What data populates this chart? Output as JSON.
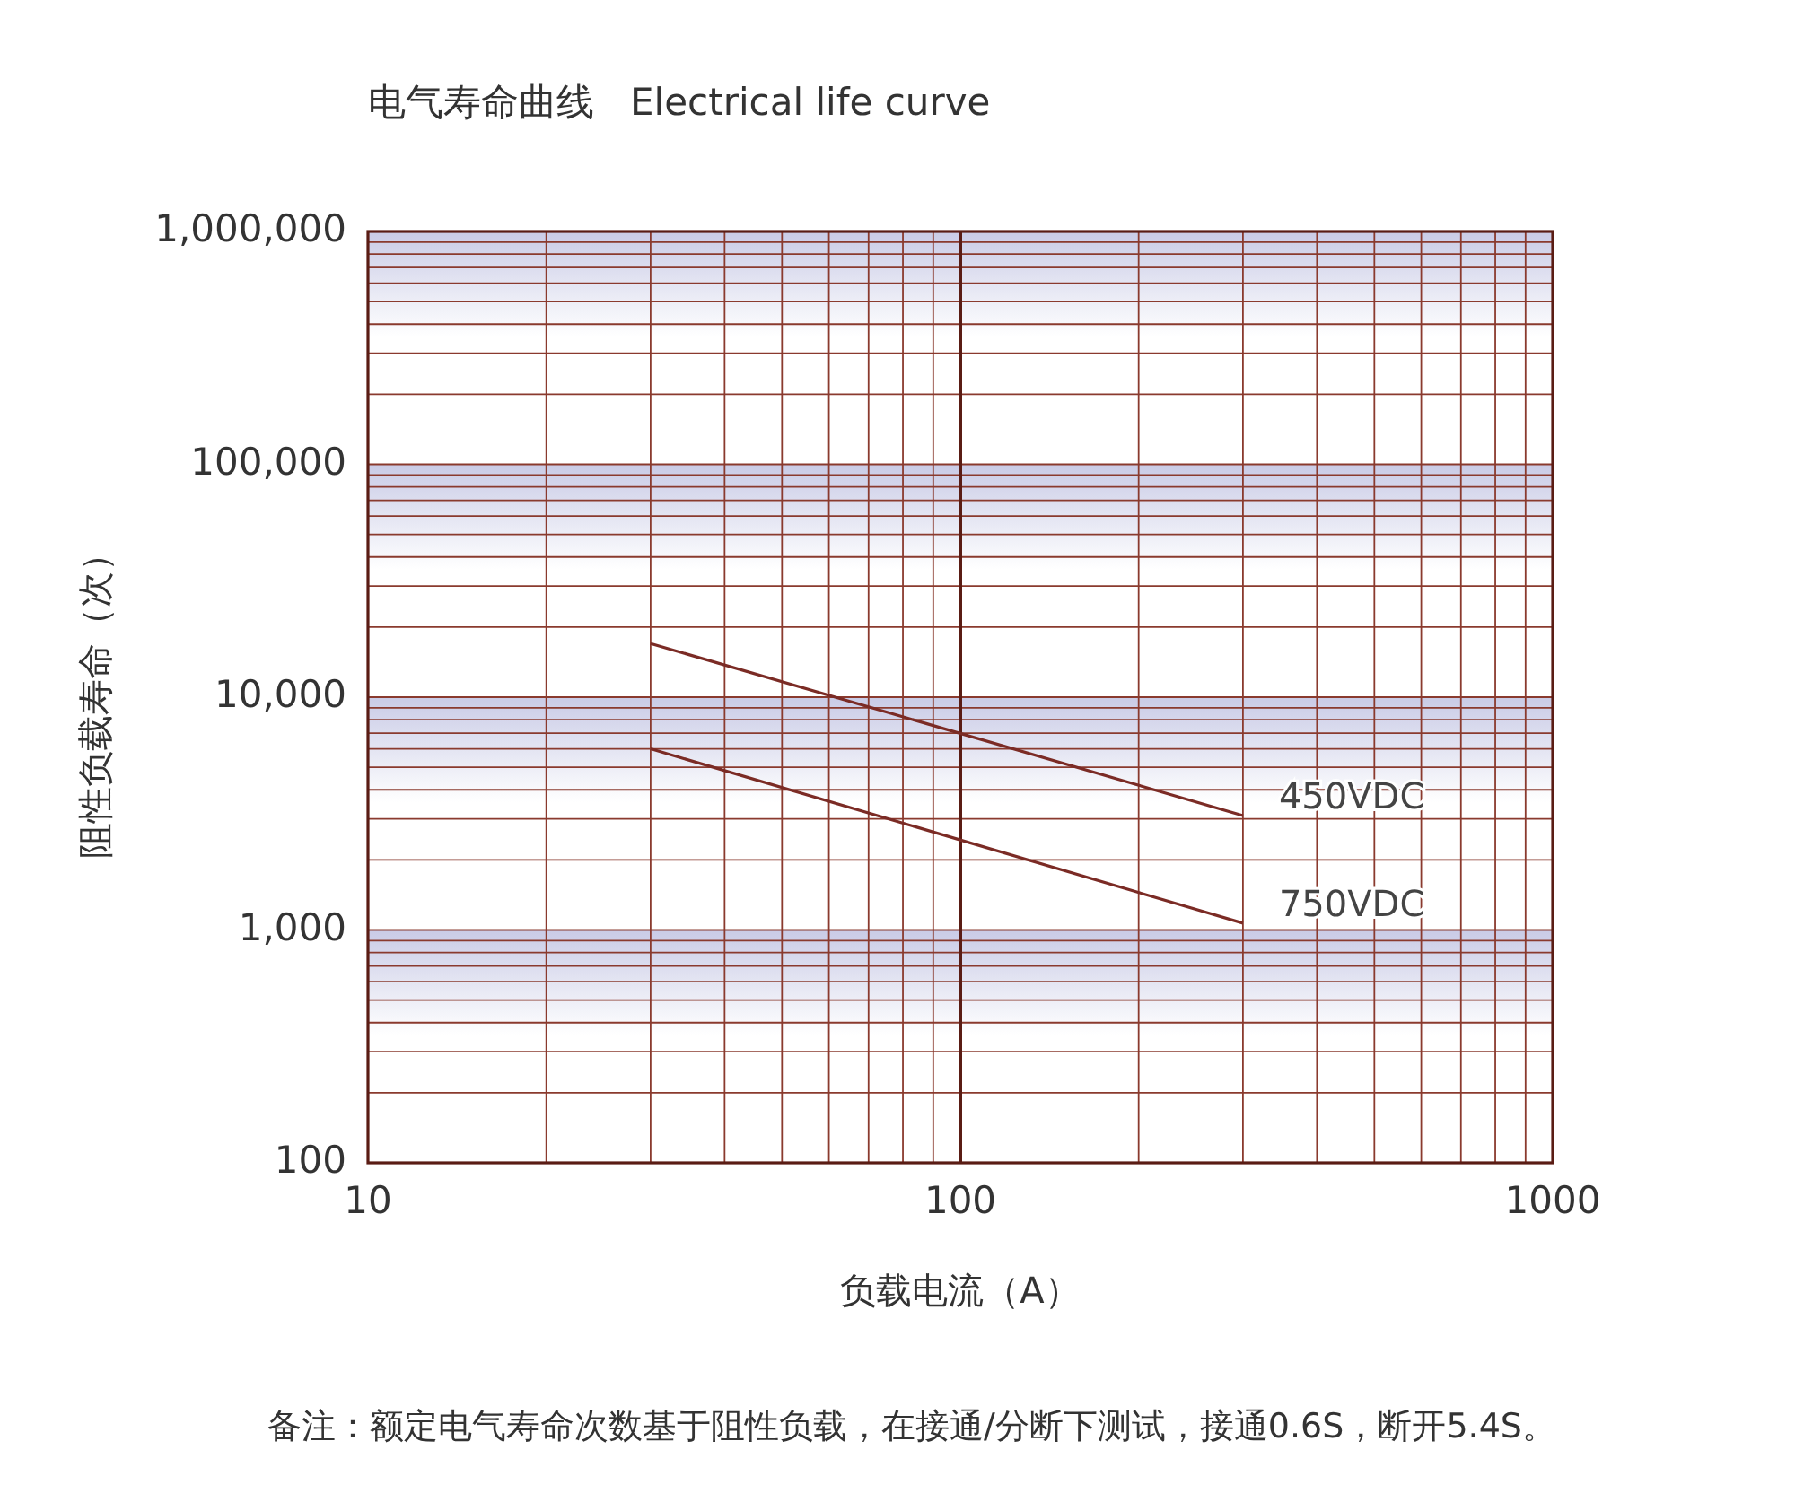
{
  "chart_data": {
    "type": "line",
    "title": "电气寿命曲线   Electrical life curve",
    "xlabel": "负载电流（A）",
    "ylabel": "阻性负载寿命（次）",
    "annotations": [
      "备注：额定电气寿命次数基于阻性负载，在接通/分断下测试，接通0.6S，断开5.4S。"
    ],
    "log": "xy",
    "grid": true,
    "legend": false,
    "xlim": [
      10,
      1000
    ],
    "xticks": [
      10,
      {
        "value": 20,
        "label": null
      },
      {
        "value": 30,
        "label": null
      },
      {
        "value": 40,
        "label": null
      },
      {
        "value": 50,
        "label": null
      },
      {
        "value": 60,
        "label": null
      },
      {
        "value": 70,
        "label": null
      },
      {
        "value": 80,
        "label": null
      },
      {
        "value": 90,
        "label": null
      },
      100,
      {
        "value": 200,
        "label": null
      },
      {
        "value": 300,
        "label": null
      },
      {
        "value": 400,
        "label": null
      },
      {
        "value": 500,
        "label": null
      },
      {
        "value": 600,
        "label": null
      },
      {
        "value": 700,
        "label": null
      },
      {
        "value": 800,
        "label": null
      },
      {
        "value": 900,
        "label": null
      },
      1000
    ],
    "ylim": [
      100,
      1000000
    ],
    "yticks": [
      {
        "value": 100,
        "label": "100"
      },
      {
        "value": 200,
        "label": null
      },
      {
        "value": 300,
        "label": null
      },
      {
        "value": 400,
        "label": null
      },
      {
        "value": 500,
        "label": null
      },
      {
        "value": 600,
        "label": null
      },
      {
        "value": 700,
        "label": null
      },
      {
        "value": 800,
        "label": null
      },
      {
        "value": 900,
        "label": null
      },
      {
        "value": 1000,
        "label": "1,000"
      },
      {
        "value": 2000,
        "label": null
      },
      {
        "value": 3000,
        "label": null
      },
      {
        "value": 4000,
        "label": null
      },
      {
        "value": 5000,
        "label": null
      },
      {
        "value": 6000,
        "label": null
      },
      {
        "value": 7000,
        "label": null
      },
      {
        "value": 8000,
        "label": null
      },
      {
        "value": 9000,
        "label": null
      },
      {
        "value": 10000,
        "label": "10,000"
      },
      {
        "value": 20000,
        "label": null
      },
      {
        "value": 30000,
        "label": null
      },
      {
        "value": 40000,
        "label": null
      },
      {
        "value": 50000,
        "label": null
      },
      {
        "value": 60000,
        "label": null
      },
      {
        "value": 70000,
        "label": null
      },
      {
        "value": 80000,
        "label": null
      },
      {
        "value": 90000,
        "label": null
      },
      {
        "value": 100000,
        "label": "100,000"
      },
      {
        "value": 200000,
        "label": null
      },
      {
        "value": 300000,
        "label": null
      },
      {
        "value": 400000,
        "label": null
      },
      {
        "value": 500000,
        "label": null
      },
      {
        "value": 600000,
        "label": null
      },
      {
        "value": 700000,
        "label": null
      },
      {
        "value": 800000,
        "label": null
      },
      {
        "value": 900000,
        "label": null
      },
      {
        "value": 1000000,
        "label": "1,000,000"
      }
    ],
    "ref_lines": [
      {
        "axis": "x",
        "value": 100,
        "color": "#5a1c14"
      }
    ],
    "x": [
      30,
      300
    ],
    "series": [
      {
        "name": "450VDC",
        "color": "#7b2b25",
        "values": [
          17000,
          3100
        ]
      },
      {
        "name": "750VDC",
        "color": "#7b2b25",
        "values": [
          6000,
          1070
        ]
      }
    ]
  }
}
